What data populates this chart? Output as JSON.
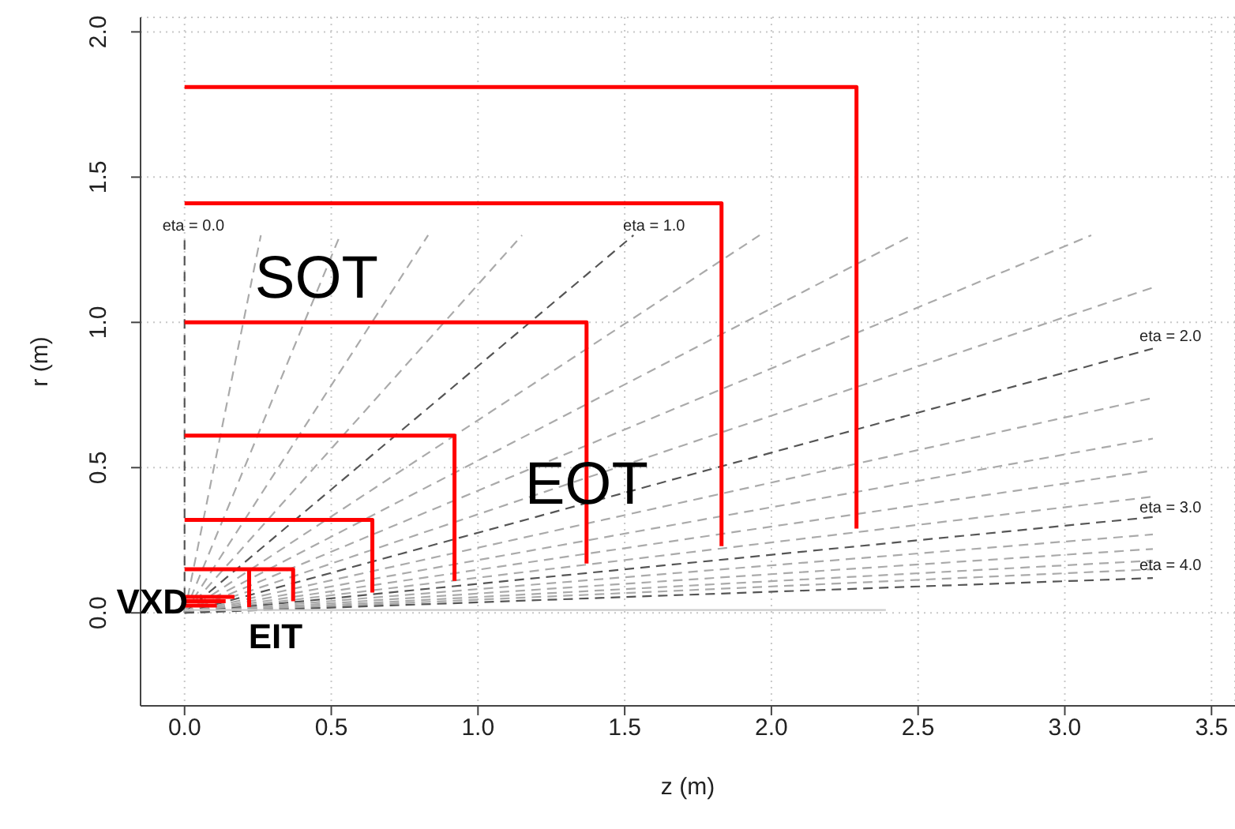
{
  "chart_data": {
    "type": "line",
    "xlabel": "z (m)",
    "ylabel": "r (m)",
    "xlim": [
      -0.15,
      3.58
    ],
    "xticks": [
      {
        "value": 0,
        "label": "0.0"
      },
      0.5,
      {
        "value": 1,
        "label": "1.0"
      },
      1.5,
      {
        "value": 2,
        "label": "2.0"
      },
      2.5,
      {
        "value": 3,
        "label": "3.0"
      },
      3.5
    ],
    "ylim": [
      -0.32,
      2.05
    ],
    "yticks": [
      {
        "value": 0,
        "label": "0.0"
      },
      0.5,
      {
        "value": 1,
        "label": "1.0"
      },
      1.5,
      {
        "value": 2,
        "label": "2.0"
      }
    ],
    "grid": true,
    "series": [
      {
        "color": "#555555",
        "line_style": "dashed",
        "x": [
          0,
          0
        ],
        "values": [
          0,
          1.3
        ]
      },
      {
        "color": "#aaaaaa",
        "line_style": "dashed",
        "x": [
          0,
          0.26
        ],
        "values": [
          0,
          1.3
        ]
      },
      {
        "color": "#aaaaaa",
        "line_style": "dashed",
        "x": [
          0,
          0.53
        ],
        "values": [
          0,
          1.3
        ]
      },
      {
        "color": "#aaaaaa",
        "line_style": "dashed",
        "x": [
          0,
          0.83
        ],
        "values": [
          0,
          1.3
        ]
      },
      {
        "color": "#aaaaaa",
        "line_style": "dashed",
        "x": [
          0,
          1.15
        ],
        "values": [
          0,
          1.3
        ]
      },
      {
        "color": "#555555",
        "line_style": "dashed",
        "x": [
          0,
          1.53
        ],
        "values": [
          0,
          1.3
        ]
      },
      {
        "color": "#aaaaaa",
        "line_style": "dashed",
        "x": [
          0,
          1.96
        ],
        "values": [
          0,
          1.3
        ]
      },
      {
        "color": "#aaaaaa",
        "line_style": "dashed",
        "x": [
          0,
          2.48
        ],
        "values": [
          0,
          1.3
        ]
      },
      {
        "color": "#aaaaaa",
        "line_style": "dashed",
        "x": [
          0,
          3.09
        ],
        "values": [
          0,
          1.3
        ]
      },
      {
        "color": "#aaaaaa",
        "line_style": "dashed",
        "x": [
          0,
          3.3
        ],
        "values": [
          0,
          1.12
        ]
      },
      {
        "color": "#555555",
        "line_style": "dashed",
        "x": [
          0,
          3.3
        ],
        "values": [
          0,
          0.91
        ]
      },
      {
        "color": "#aaaaaa",
        "line_style": "dashed",
        "x": [
          0,
          3.3
        ],
        "values": [
          0,
          0.74
        ]
      },
      {
        "color": "#aaaaaa",
        "line_style": "dashed",
        "x": [
          0,
          3.3
        ],
        "values": [
          0,
          0.6
        ]
      },
      {
        "color": "#aaaaaa",
        "line_style": "dashed",
        "x": [
          0,
          3.3
        ],
        "values": [
          0,
          0.49
        ]
      },
      {
        "color": "#aaaaaa",
        "line_style": "dashed",
        "x": [
          0,
          3.3
        ],
        "values": [
          0,
          0.4
        ]
      },
      {
        "color": "#555555",
        "line_style": "dashed",
        "x": [
          0,
          3.3
        ],
        "values": [
          0,
          0.33
        ]
      },
      {
        "color": "#aaaaaa",
        "line_style": "dashed",
        "x": [
          0,
          3.3
        ],
        "values": [
          0,
          0.27
        ]
      },
      {
        "color": "#aaaaaa",
        "line_style": "dashed",
        "x": [
          0,
          3.3
        ],
        "values": [
          0,
          0.22
        ]
      },
      {
        "color": "#aaaaaa",
        "line_style": "dashed",
        "x": [
          0,
          3.3
        ],
        "values": [
          0,
          0.18
        ]
      },
      {
        "color": "#aaaaaa",
        "line_style": "dashed",
        "x": [
          0,
          3.3
        ],
        "values": [
          0,
          0.15
        ]
      },
      {
        "color": "#555555",
        "line_style": "dashed",
        "x": [
          0,
          3.3
        ],
        "values": [
          0,
          0.12
        ]
      },
      {
        "color": "#cccccc",
        "line_style": "solid",
        "x": [
          0,
          2.39
        ],
        "values": [
          0.01,
          0.01
        ]
      },
      {
        "color": "#ff0000",
        "line_style": "solid",
        "x": [
          0,
          2.29,
          2.29
        ],
        "values": [
          1.81,
          1.81,
          0.29
        ]
      },
      {
        "color": "#ff0000",
        "line_style": "solid",
        "x": [
          0,
          1.83,
          1.83
        ],
        "values": [
          1.41,
          1.41,
          0.23
        ]
      },
      {
        "color": "#ff0000",
        "line_style": "solid",
        "x": [
          0,
          1.37,
          1.37
        ],
        "values": [
          1.0,
          1.0,
          0.17
        ]
      },
      {
        "color": "#ff0000",
        "line_style": "solid",
        "x": [
          0,
          0.92,
          0.92
        ],
        "values": [
          0.61,
          0.61,
          0.11
        ]
      },
      {
        "color": "#ff0000",
        "line_style": "solid",
        "x": [
          0,
          0.64,
          0.64
        ],
        "values": [
          0.32,
          0.32,
          0.07
        ]
      },
      {
        "color": "#ff0000",
        "line_style": "solid",
        "x": [
          0,
          0.37,
          0.37
        ],
        "values": [
          0.15,
          0.15,
          0.04
        ]
      },
      {
        "color": "#ff0000",
        "line_style": "solid",
        "x": [
          0.22,
          0.22
        ],
        "values": [
          0.15,
          0.02
        ]
      },
      {
        "color": "#ff0000",
        "line_style": "solid",
        "x": [
          0,
          0.17
        ],
        "values": [
          0.055,
          0.055
        ]
      },
      {
        "color": "#ff0000",
        "line_style": "solid",
        "x": [
          0,
          0.14
        ],
        "values": [
          0.04,
          0.04
        ]
      },
      {
        "color": "#ff0000",
        "line_style": "solid",
        "x": [
          0,
          0.11
        ],
        "values": [
          0.025,
          0.025
        ]
      }
    ],
    "annotations": [
      "eta = 0.0",
      "eta = 1.0",
      "eta = 2.0",
      "eta = 3.0",
      "eta = 4.0",
      "SOT",
      "EOT",
      "VXD",
      "EIT"
    ]
  }
}
